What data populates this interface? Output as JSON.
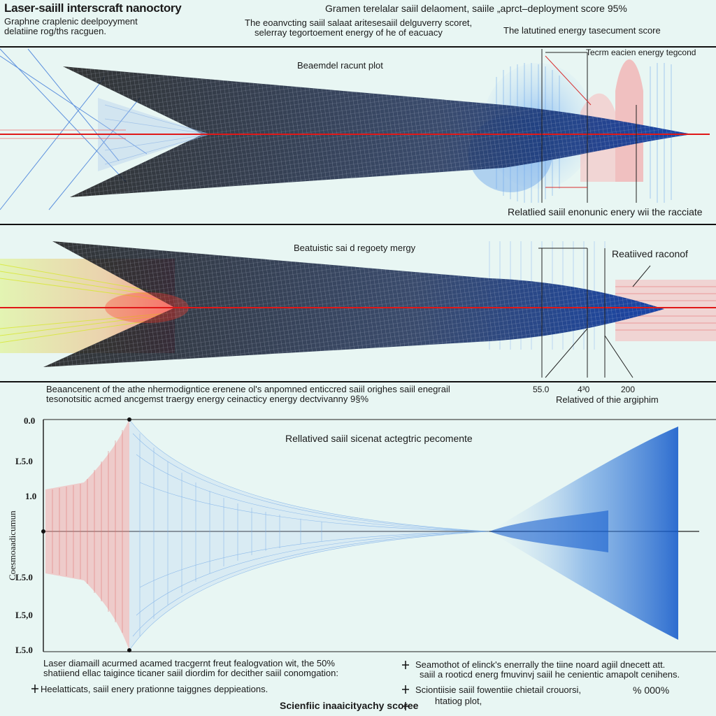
{
  "header": {
    "title": "Laser-saiill interscraft nanoctory",
    "subtitle_lines": [
      "Graphne craplenic deelpoyyment",
      "delatiine rog/ths racguen."
    ],
    "center_top": "Gramen terelalar saiil delaoment, saiile „aprct–deployment score 95%",
    "center_lines": [
      "The eoanvcting saiil salaat aritesesaiil delguverry scoret,",
      "selerray tegortoement energy of he of eacuacy"
    ],
    "right_note": "The latutined energy tasecument score"
  },
  "panel1": {
    "label": "Beaemdel racunt plot",
    "corner_note": "Tecrm eacien energy tegcond",
    "bottom_right": "Relatlied saiil enonunic enery wii the racciate"
  },
  "panel2": {
    "label": "Beatuistic sai d regoety mergy",
    "right_label": "Reatiived raconof",
    "desc_lines": [
      "Beaancenent of the athe nhermodigntice erenene ol's anpomned enticcred saiil orighes saiil enegrail",
      "tesonotsitic acmed ancgemst traergy energy ceinacticy energy dectvivanny 9§%"
    ],
    "tick_values": [
      "55.0",
      "4³0",
      "200"
    ],
    "axis_caption": "Relatived of thie argiphim"
  },
  "panel3": {
    "title": "Rellatived saiil sicenat actegtric pecomente",
    "ylabel": "Coesmoaadicumun",
    "yticks": [
      "0.0",
      "L5.0",
      "1.0",
      "L5.0",
      "L5,0",
      "L5.0"
    ]
  },
  "footer": {
    "left_lines": [
      "Laser diamaill acurmed acamed tracgernt freut fealogvation wit, the 50%",
      "shatiiend ellac taigince ticaner saiil diordim for decither saiil conomgation:"
    ],
    "left_bullet": "Heelatticats, saiil enery prationne taiggnes deppieations.",
    "right_bullet_1": [
      "Seamothot of elinck's enerrally the tiine noard agiil dnecett att.",
      "saiil a rooticd energ fmuvinvj saiil he cenientic amapolt cenihens."
    ],
    "right_bullet_2": [
      "Sciontiisie saiil fowentiie chietail crouorsi,",
      "htatiog plot,"
    ],
    "right_pct": "% 000%",
    "bottom_center": "Scienfiic inaaicityachy scoree"
  },
  "colors": {
    "background": "#e8f6f3",
    "mesh": "#1a2233",
    "laser_red": "#e01818",
    "beam_blue": "#2d78d8",
    "heat_yellow": "#e9e62a",
    "heat_pink": "#f2a3a3"
  }
}
